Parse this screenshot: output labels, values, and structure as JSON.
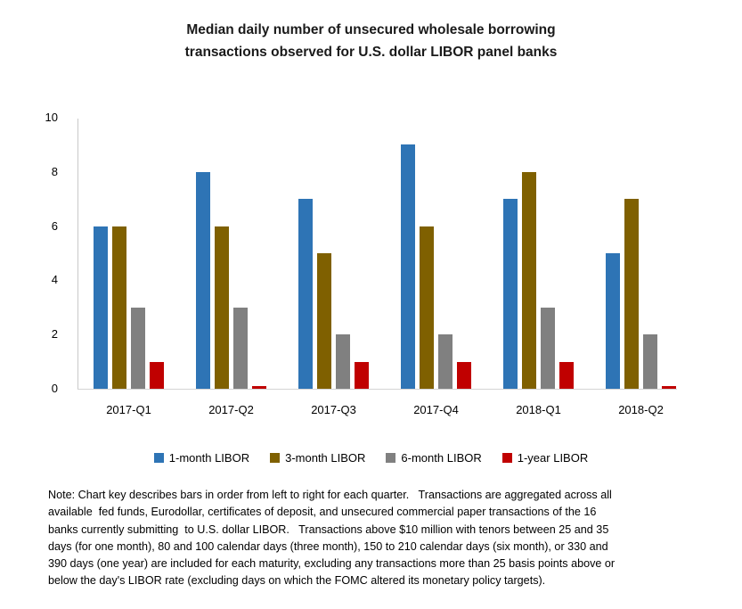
{
  "title": {
    "lines": [
      "Median daily number of unsecured wholesale borrowing",
      "transactions observed for U.S. dollar LIBOR panel banks"
    ]
  },
  "chart_data": {
    "type": "bar",
    "title": "Median daily number of unsecured wholesale borrowing transactions observed for U.S. dollar LIBOR panel banks",
    "categories": [
      "2017-Q1",
      "2017-Q2",
      "2017-Q3",
      "2017-Q4",
      "2018-Q1",
      "2018-Q2"
    ],
    "series": [
      {
        "name": "1-month LIBOR",
        "color": "#2E74B5",
        "values": [
          6,
          8,
          7,
          9,
          7,
          5
        ]
      },
      {
        "name": "3-month LIBOR",
        "color": "#7F6000",
        "values": [
          6,
          6,
          5,
          6,
          8,
          7
        ]
      },
      {
        "name": "6-month LIBOR",
        "color": "#808080",
        "values": [
          3,
          3,
          2,
          2,
          3,
          2
        ]
      },
      {
        "name": "1-year LIBOR",
        "color": "#C00000",
        "values": [
          1,
          0.1,
          1,
          1,
          1,
          0.1
        ]
      }
    ],
    "xlabel": "",
    "ylabel": "",
    "ylim": [
      0,
      10
    ],
    "yticks": [
      0,
      2,
      4,
      6,
      8,
      10
    ],
    "grid": false,
    "legend_position": "bottom"
  },
  "note": {
    "lines": [
      "Note: Chart key describes bars in order from left to right for each quarter.   Transactions are aggregated across all",
      "available  fed funds, Eurodollar, certificates of deposit, and unsecured commercial paper transactions of the 16",
      "banks currently submitting  to U.S. dollar LIBOR.   Transactions above $10 million with tenors between 25 and 35",
      "days (for one month), 80 and 100 calendar days (three month), 150 to 210 calendar days (six month), or 330 and",
      "390 days (one year) are included for each maturity, excluding any transactions more than 25 basis points above or",
      "below the day's LIBOR rate (excluding days on which the FOMC altered its monetary policy targets)."
    ]
  }
}
